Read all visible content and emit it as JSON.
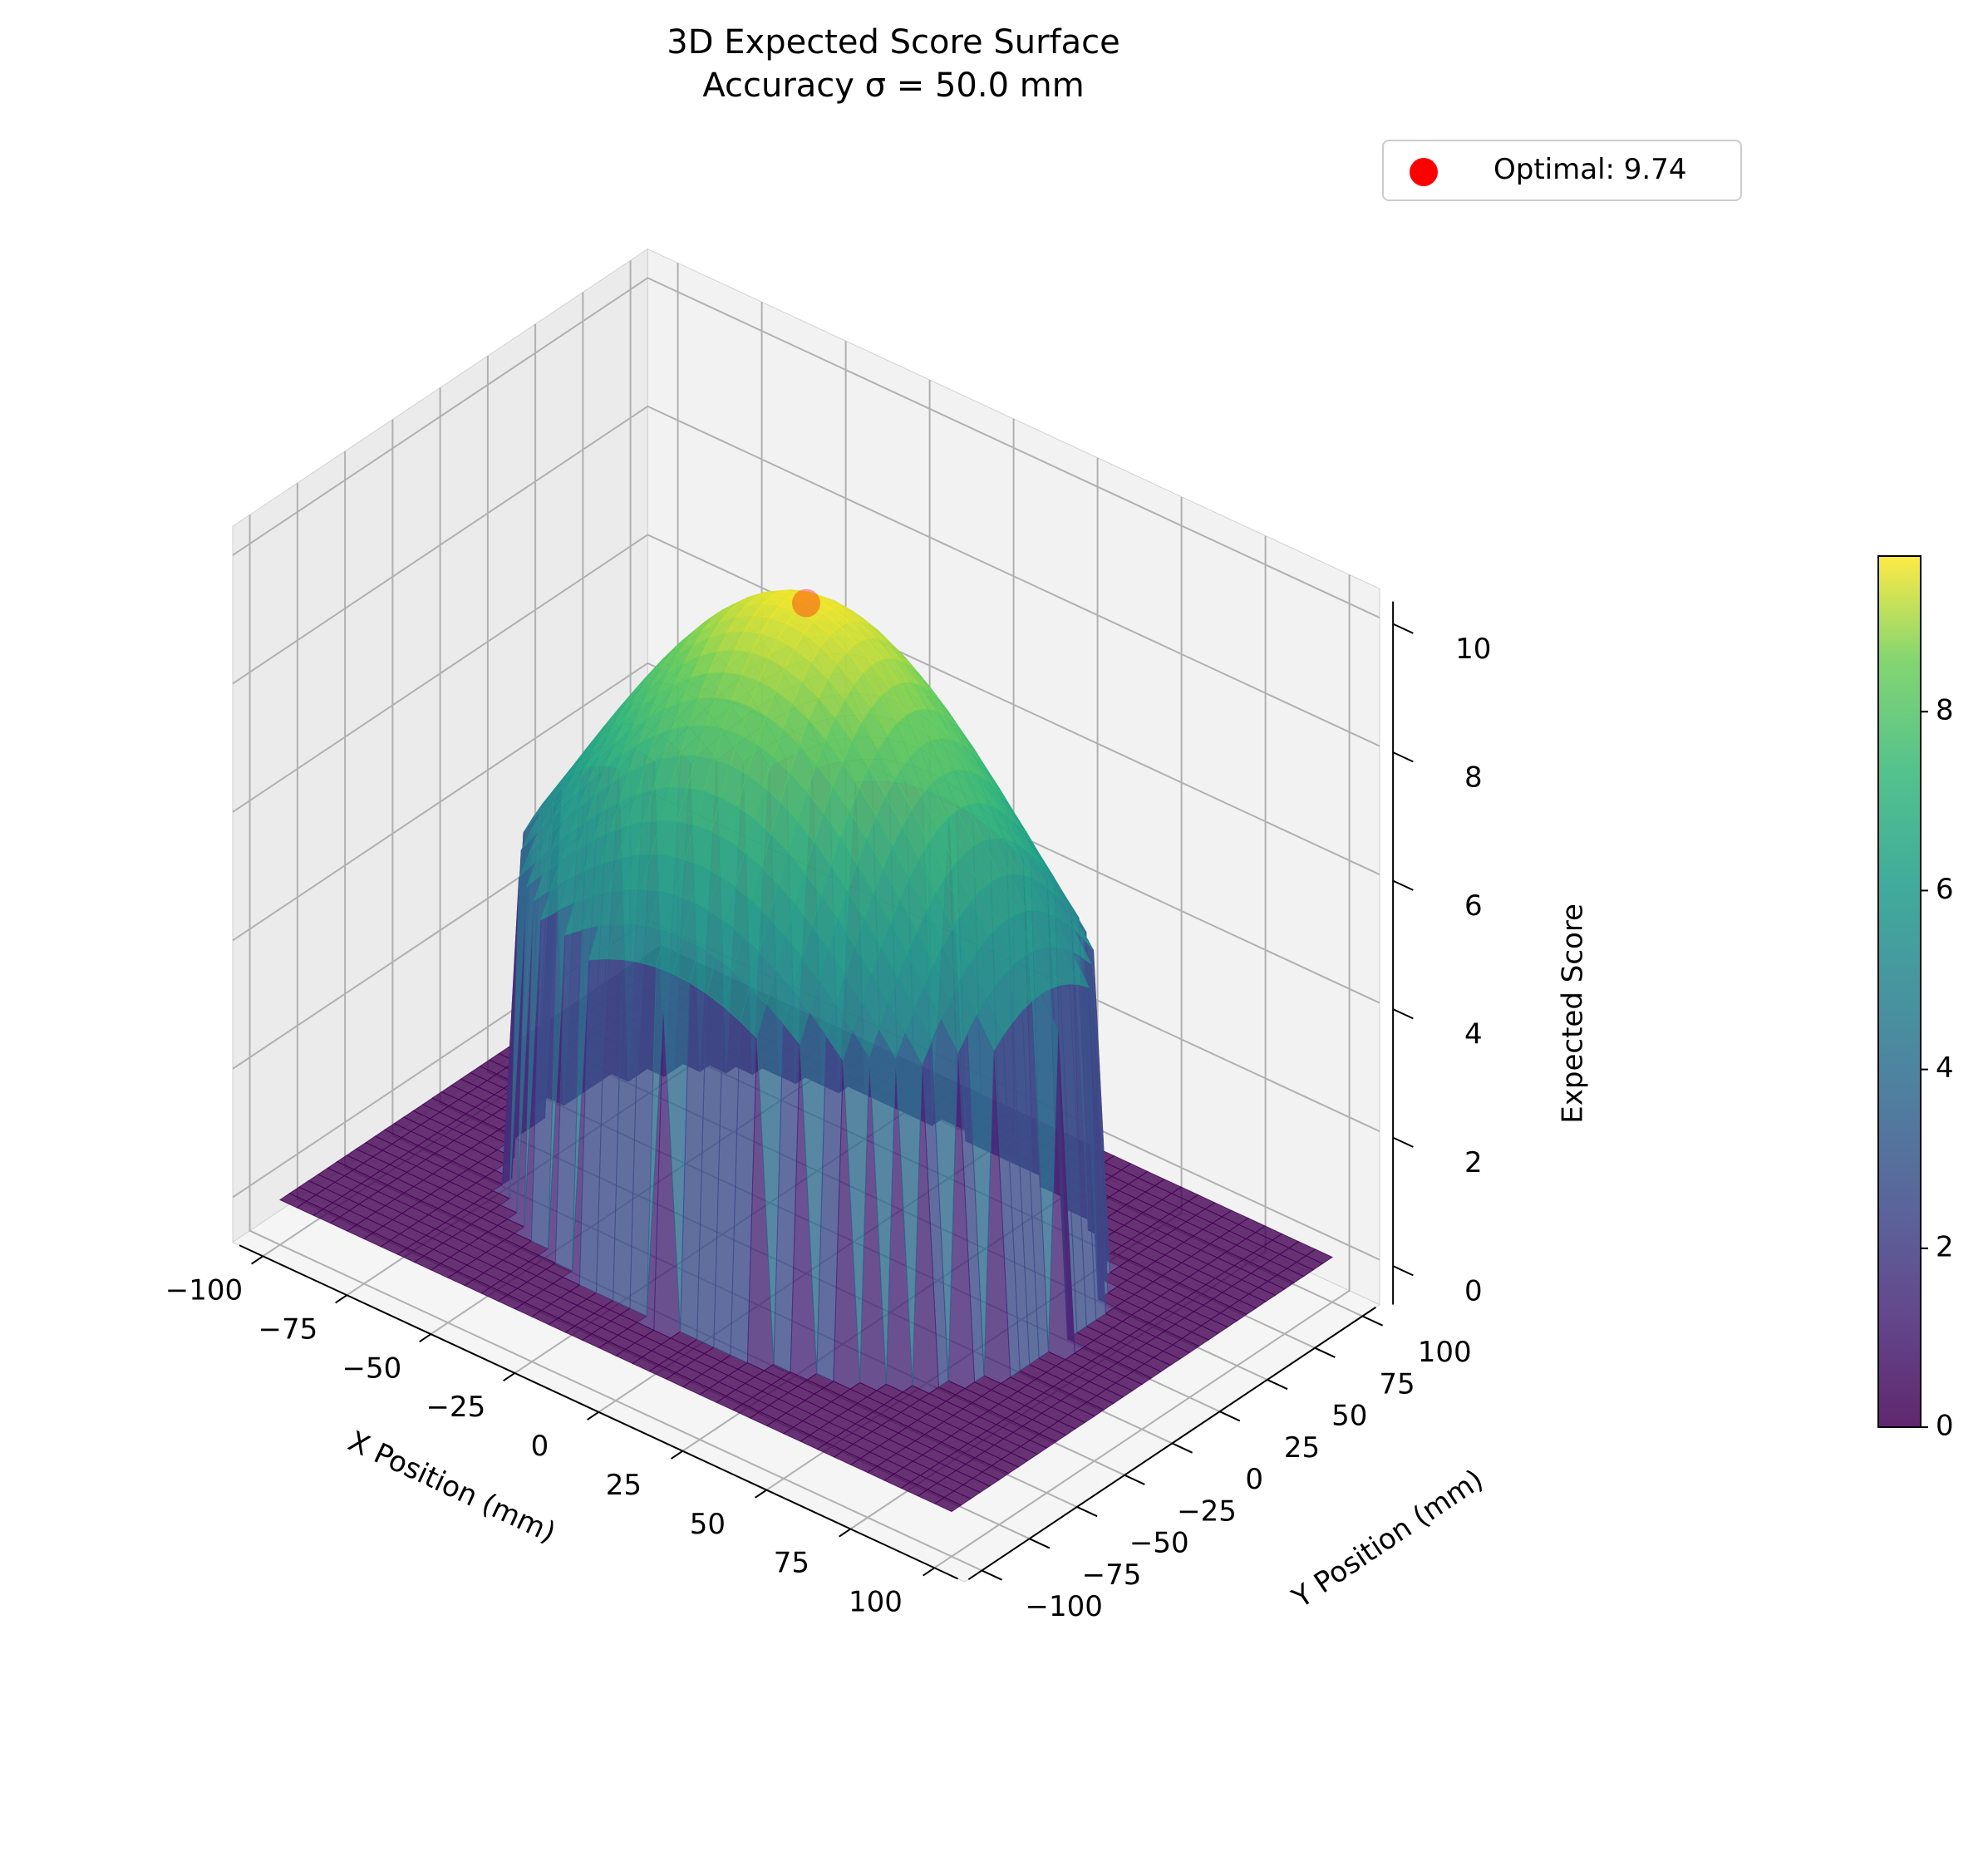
{
  "chart_data": {
    "type": "surface3d",
    "title": "3D Expected Score Surface",
    "subtitle": "Accuracy σ = 50.0 mm",
    "xlabel": "X Position (mm)",
    "ylabel": "Y Position (mm)",
    "zlabel": "Expected Score",
    "x_ticks": [
      "−100",
      "−75",
      "−50",
      "−25",
      "0",
      "25",
      "50",
      "75",
      "100"
    ],
    "y_ticks": [
      "−100",
      "−75",
      "−50",
      "−25",
      "0",
      "25",
      "50",
      "75",
      "100"
    ],
    "z_ticks": [
      "0",
      "2",
      "4",
      "6",
      "8",
      "10"
    ],
    "xlim": [
      -100,
      100
    ],
    "ylim": [
      -100,
      100
    ],
    "zlim": [
      0,
      10
    ],
    "sigma_mm": 50.0,
    "surface_radius_mm": 75,
    "peak_score": 9.74,
    "optimal_point": {
      "x": 0,
      "y": 0,
      "z": 9.74
    },
    "legend": [
      {
        "label": "Optimal: 9.74",
        "marker": "circle",
        "color": "#ff0000"
      }
    ],
    "legend_position": "top-right",
    "colormap": "viridis",
    "colorbar": {
      "ticks": [
        "0",
        "2",
        "4",
        "6",
        "8"
      ],
      "range": [
        0,
        9.74
      ]
    },
    "grid": true
  }
}
